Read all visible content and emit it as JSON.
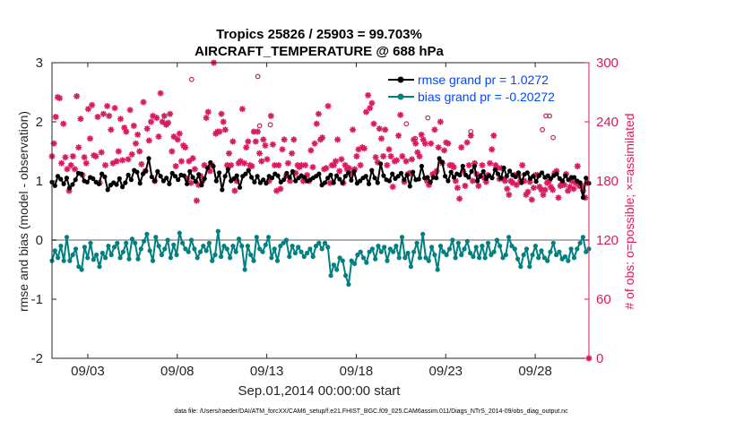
{
  "chart_data": {
    "type": "line",
    "title_line1": "Tropics 25826 / 25903 = 99.703%",
    "title_line2": "AIRCRAFT_TEMPERATURE @ 688 hPa",
    "xlabel": "Sep.01,2014 00:00:00 start",
    "ylabel_left": "rmse and bias (model - observation)",
    "ylabel_right": "# of obs: o=possible; ×=assimilated",
    "footer": "data file: /Users/raeder/DAI/ATM_forcXX/CAM6_setup/f.e21.FHIST_BGC.f09_025.CAM6assim.011/Diags_NTrS_2014-09/obs_diag_output.nc",
    "x_range_days": [
      1.0,
      31.0
    ],
    "x_ticks": [
      {
        "day": 3,
        "label": "09/03"
      },
      {
        "day": 8,
        "label": "09/08"
      },
      {
        "day": 13,
        "label": "09/13"
      },
      {
        "day": 18,
        "label": "09/18"
      },
      {
        "day": 23,
        "label": "09/23"
      },
      {
        "day": 28,
        "label": "09/28"
      }
    ],
    "ylim_left": [
      -2,
      3
    ],
    "yticks_left": [
      "-2",
      "-1",
      "0",
      "1",
      "2",
      "3"
    ],
    "ylim_right": [
      0,
      300
    ],
    "yticks_right": [
      "0",
      "60",
      "120",
      "180",
      "240",
      "300"
    ],
    "colors": {
      "rmse": "#000000",
      "bias": "#008080",
      "obs": "#d81b60",
      "zero_line": "#b0b0b0",
      "legend_text": "#0047ff"
    },
    "legend": [
      {
        "key": "rmse",
        "label": "rmse grand pr = 1.0272"
      },
      {
        "key": "bias",
        "label": "bias grand pr = -0.20272"
      }
    ],
    "series": [
      {
        "name": "rmse",
        "values": [
          0.98,
          0.92,
          1.08,
          1.03,
          0.95,
          1.05,
          0.88,
          0.94,
          1.02,
          1.13,
          1.12,
          1.0,
          0.98,
          1.06,
          1.04,
          0.98,
          0.95,
          1.12,
          1.07,
          0.85,
          0.93,
          0.97,
          0.94,
          1.04,
          0.9,
          0.97,
          1.1,
          1.02,
          1.18,
          1.15,
          0.96,
          1.12,
          1.17,
          1.38,
          1.07,
          1.0,
          1.16,
          1.08,
          1.0,
          1.05,
          0.95,
          1.13,
          1.08,
          1.02,
          1.1,
          1.09,
          0.95,
          1.16,
          1.06,
          0.99,
          1.11,
          0.93,
          1.04,
          1.22,
          1.31,
          1.25,
          1.0,
          1.14,
          0.85,
          1.08,
          1.2,
          1.0,
          1.04,
          1.09,
          0.89,
          1.08,
          1.12,
          1.18,
          1.06,
          0.98,
          1.08,
          0.97,
          1.02,
          0.96,
          1.08,
          1.05,
          1.12,
          1.09,
          0.98,
          1.02,
          1.13,
          1.06,
          1.16,
          1.0,
          1.05,
          1.09,
          1.06,
          1.0,
          1.02,
          1.05,
          1.08,
          1.12,
          0.93,
          0.97,
          1.05,
          1.1,
          0.97,
          1.09,
          1.03,
          0.97,
          1.08,
          1.14,
          1.01,
          1.16,
          0.96,
          1.0,
          1.05,
          1.08,
          0.95,
          1.18,
          1.05,
          0.97,
          1.29,
          1.09,
          1.02,
          1.0,
          1.12,
          1.04,
          1.08,
          1.13,
          1.02,
          1.1,
          0.91,
          1.15,
          1.02,
          1.03,
          1.25,
          1.05,
          1.06,
          0.98,
          1.06,
          1.05,
          1.38,
          1.32,
          1.08,
          1.0,
          1.15,
          1.06,
          1.12,
          1.1,
          1.25,
          1.1,
          1.06,
          1.16,
          1.25,
          1.0,
          1.08,
          1.16,
          1.04,
          1.09,
          1.05,
          1.19,
          1.12,
          1.05,
          1.22,
          1.08,
          1.17,
          1.1,
          1.07,
          1.14,
          0.97,
          1.11,
          1.14,
          1.04,
          1.08,
          0.99,
          1.09,
          1.14,
          1.06,
          1.09,
          1.04,
          1.09,
          1.12,
          1.04,
          1.0,
          1.09,
          1.02,
          1.06,
          1.06,
          1.0,
          0.97,
          0.72,
          1.05,
          0.96
        ]
      },
      {
        "name": "bias",
        "values": [
          -0.35,
          -0.18,
          -0.3,
          -0.1,
          -0.35,
          0.05,
          -0.35,
          -0.25,
          -0.15,
          -0.45,
          -0.5,
          -0.12,
          -0.3,
          -0.05,
          -0.33,
          -0.25,
          -0.45,
          -0.22,
          -0.3,
          -0.1,
          -0.25,
          -0.12,
          -0.05,
          -0.3,
          -0.2,
          -0.05,
          -0.32,
          0.02,
          -0.05,
          -0.32,
          -0.15,
          -0.02,
          0.1,
          -0.18,
          -0.35,
          0.05,
          -0.1,
          -0.25,
          -0.15,
          0.0,
          -0.3,
          -0.08,
          -0.25,
          0.12,
          -0.05,
          -0.15,
          -0.2,
          0.0,
          -0.15,
          -0.3,
          -0.2,
          -0.1,
          -0.18,
          -0.05,
          -0.35,
          -0.25,
          0.15,
          -0.28,
          -0.1,
          -0.15,
          -0.3,
          -0.1,
          -0.2,
          0.02,
          -0.1,
          -0.5,
          -0.1,
          -0.25,
          -0.35,
          0.05,
          -0.15,
          -0.2,
          -0.08,
          0.05,
          -0.3,
          -0.15,
          -0.35,
          -0.1,
          -0.05,
          0.0,
          -0.28,
          -0.1,
          -0.22,
          -0.12,
          -0.2,
          -0.28,
          -0.22,
          -0.15,
          -0.28,
          -0.1,
          -0.05,
          -0.15,
          -0.05,
          -0.12,
          -0.6,
          -0.42,
          -0.5,
          -0.3,
          -0.35,
          -0.6,
          -0.75,
          -0.35,
          -0.4,
          -0.25,
          -0.2,
          -0.3,
          -0.38,
          -0.2,
          -0.15,
          -0.32,
          -0.1,
          -0.2,
          -0.12,
          -0.35,
          -0.15,
          -0.2,
          -0.1,
          -0.3,
          0.05,
          -0.3,
          -0.22,
          -0.45,
          -0.2,
          -0.05,
          -0.3,
          0.1,
          -0.3,
          -0.35,
          -0.12,
          -0.25,
          -0.5,
          -0.1,
          -0.2,
          -0.25,
          -0.15,
          0.0,
          -0.3,
          -0.05,
          -0.25,
          -0.15,
          -0.02,
          -0.22,
          -0.28,
          -0.12,
          -0.3,
          -0.1,
          -0.3,
          -0.05,
          -0.25,
          -0.2,
          0.0,
          -0.1,
          -0.3,
          -0.25,
          0.05,
          -0.1,
          -0.15,
          -0.32,
          -0.45,
          -0.25,
          -0.15,
          -0.45,
          -0.25,
          -0.1,
          -0.3,
          -0.18,
          -0.3,
          -0.35,
          -0.2,
          -0.05,
          -0.25,
          -0.2,
          -0.32,
          -0.28,
          -0.35,
          -0.15,
          -0.3,
          -0.15,
          -0.05,
          0.05,
          -0.2,
          -0.15
        ]
      },
      {
        "name": "obs_assimilated",
        "values": [
          205,
          218,
          245,
          265,
          264,
          198,
          238,
          204,
          192,
          170,
          196,
          205,
          192,
          266,
          214,
          243,
          186,
          204,
          198,
          253,
          223,
          257,
          206,
          205,
          245,
          178,
          209,
          248,
          196,
          256,
          246,
          232,
          198,
          254,
          200,
          210,
          243,
          201,
          234,
          230,
          202,
          252,
          207,
          236,
          218,
          227,
          210,
          197,
          260,
          190,
          233,
          221,
          240,
          246,
          180,
          244,
          225,
          269,
          240,
          246,
          237,
          239,
          248,
          210,
          225,
          195,
          222,
          228,
          200,
          216,
          214,
          182,
          200,
          178,
          203,
          192,
          160,
          176,
          185,
          180,
          196,
          244,
          250,
          190,
          196,
          300,
          228,
          230,
          230,
          248,
          240,
          232,
          196,
          208,
          196,
          220,
          170,
          180,
          198,
          200,
          253,
          198,
          214,
          220,
          196,
          195,
          230,
          220,
          230,
          208,
          200,
          222,
          216,
          202,
          180,
          246,
          217,
          196,
          170,
          196,
          172,
          212,
          222,
          185,
          198,
          180,
          208,
          222,
          188,
          196,
          194,
          196,
          180,
          196,
          186,
          180,
          211,
          194,
          218,
          238,
          248,
          222,
          224,
          192,
          193,
          256,
          178,
          196,
          196,
          200,
          222,
          190,
          202,
          178,
          196,
          192,
          193,
          188,
          232,
          192,
          205,
          212,
          196,
          214,
          213,
          250,
          267,
          254,
          259,
          238,
          204,
          199,
          233,
          223,
          205,
          232,
          196,
          212,
          205,
          174,
          200,
          201,
          226,
          247,
          205,
          179,
          200,
          187,
          188,
          202,
          222,
          218,
          209,
          205,
          227,
          222,
          218,
          180,
          176,
          218,
          187,
          232,
          190,
          214,
          240,
          198,
          211,
          219,
          218,
          196,
          196,
          194,
          180,
          173,
          162,
          214,
          190,
          175,
          219,
          196,
          226,
          180,
          198,
          187,
          175,
          185,
          196,
          183,
          179,
          186,
          198,
          212,
          226,
          196,
          193,
          182,
          193,
          182,
          180,
          172,
          166,
          180,
          178,
          186,
          176,
          186,
          180,
          196,
          180,
          166,
          169,
          179,
          161,
          173,
          186,
          186,
          174,
          171,
          166,
          171,
          178,
          180,
          174,
          171,
          188,
          190,
          163,
          175,
          178,
          176,
          187,
          170,
          174,
          180,
          172,
          178,
          195,
          175,
          175,
          170,
          163,
          178,
          0
        ]
      },
      {
        "name": "obs_possible_extra",
        "values": [
          283,
          286,
          236,
          238,
          223,
          232,
          246,
          246,
          244,
          230,
          237,
          224
        ]
      }
    ]
  }
}
